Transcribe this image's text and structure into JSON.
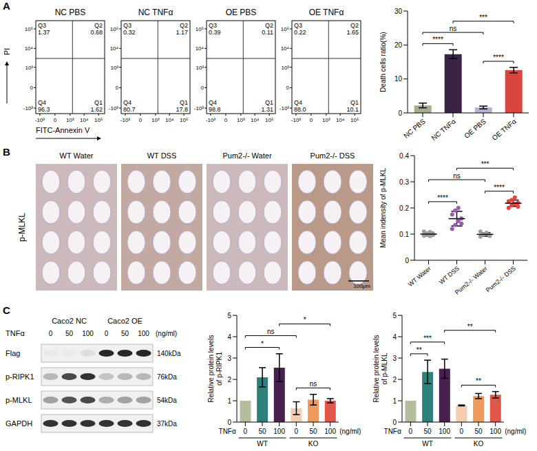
{
  "panel_labels": [
    "A",
    "B",
    "C"
  ],
  "flow_cytometry": {
    "x_label": "FITC-Annexin V",
    "y_label": "PI",
    "xlim": [
      -2000,
      262144
    ],
    "ylim": [
      -2000,
      262144
    ],
    "xticks": [
      {
        "value": -1000,
        "label": "-10³"
      },
      0,
      {
        "value": 1000,
        "label": "10³"
      },
      {
        "value": 10000,
        "label": "10⁴"
      },
      {
        "value": 100000,
        "label": "10⁵"
      }
    ],
    "yticks": [
      {
        "value": -1000,
        "label": "-10³"
      },
      0,
      {
        "value": 1000,
        "label": "10³"
      },
      {
        "value": 10000,
        "label": "10⁴"
      },
      {
        "value": 100000,
        "label": "10⁵"
      }
    ],
    "gate": {
      "x": 1500,
      "y": 3000
    },
    "panels": [
      {
        "title": "NC PBS",
        "quadrants": [
          {
            "name": "Q3",
            "value": 1.37
          },
          {
            "name": "Q2",
            "value": 0.68
          },
          {
            "name": "Q4",
            "value": 96.3
          },
          {
            "name": "Q1",
            "value": 1.62
          }
        ]
      },
      {
        "title": "NC TNFα",
        "quadrants": [
          {
            "name": "Q3",
            "value": 0.32
          },
          {
            "name": "Q2",
            "value": 1.17
          },
          {
            "name": "Q4",
            "value": 80.7
          },
          {
            "name": "Q1",
            "value": 17.8
          }
        ]
      },
      {
        "title": "OE PBS",
        "quadrants": [
          {
            "name": "Q3",
            "value": 0.39
          },
          {
            "name": "Q2",
            "value": 0.11
          },
          {
            "name": "Q4",
            "value": 98.8
          },
          {
            "name": "Q1",
            "value": 1.31
          }
        ]
      },
      {
        "title": "OE TNFα",
        "quadrants": [
          {
            "name": "Q3",
            "value": 0.22
          },
          {
            "name": "Q2",
            "value": 1.65
          },
          {
            "name": "Q4",
            "value": 88.0,
            "label": "88.0"
          },
          {
            "name": "Q1",
            "value": 10.1
          }
        ]
      }
    ]
  },
  "ihc": {
    "y_label": "p-MLKL",
    "scale_bar": "100μm",
    "panels": [
      "WT Water",
      "WT DSS",
      "Pum2-/- Water",
      "Pum2-/- DSS"
    ]
  },
  "western_blot": {
    "groups": [
      {
        "name": "Caco2 NC",
        "lanes": 3
      },
      {
        "name": "Caco2 OE",
        "lanes": 3
      }
    ],
    "dose_label": "TNFα",
    "doses": [
      0,
      50,
      100,
      0,
      50,
      100
    ],
    "dose_unit": "(ng/ml)",
    "rows": [
      {
        "name": "Flag",
        "size": "140kDa",
        "intensity": [
          0.03,
          0.03,
          0.08,
          0.9,
          0.9,
          0.9
        ]
      },
      {
        "name": "p-RIPK1",
        "size": "76kDa",
        "intensity": [
          0.25,
          0.75,
          0.85,
          0.2,
          0.25,
          0.25
        ]
      },
      {
        "name": "p-MLKL",
        "size": "54kDa",
        "intensity": [
          0.35,
          0.7,
          0.75,
          0.3,
          0.35,
          0.35
        ]
      },
      {
        "name": "GAPDH",
        "size": "37kDa",
        "intensity": [
          0.85,
          0.85,
          0.85,
          0.85,
          0.85,
          0.85
        ]
      }
    ]
  },
  "chart_data": [
    {
      "type": "bar",
      "categories": [
        "NC PBS",
        "NC TNFα",
        "OE PBS",
        "OE TNFα"
      ],
      "values": [
        2.2,
        17.3,
        1.6,
        12.6
      ],
      "errors": [
        0.7,
        1.3,
        0.4,
        0.8
      ],
      "colors": [
        "#a3ad8f",
        "#3b2346",
        "#b9b1cf",
        "#d8473f"
      ],
      "y_label": "Death cells ratio(%)",
      "ylim": [
        0,
        30
      ],
      "yticks": [
        0,
        10,
        20,
        30
      ],
      "annotations": [
        {
          "from": 0,
          "to": 1,
          "label": "****"
        },
        {
          "from": 2,
          "to": 3,
          "label": "****"
        },
        {
          "from": 0,
          "to": 2,
          "label": "ns"
        },
        {
          "from": 1,
          "to": 3,
          "label": "***"
        }
      ]
    },
    {
      "type": "scatter",
      "categories": [
        "WT Water",
        "WT DSS",
        "Pum2-/- Water",
        "Pum2-/- DSS"
      ],
      "values": [
        [
          0.094,
          0.1,
          0.108,
          0.097,
          0.11,
          0.103,
          0.092,
          0.1
        ],
        [
          0.12,
          0.135,
          0.15,
          0.16,
          0.175,
          0.19,
          0.2,
          0.14
        ],
        [
          0.09,
          0.1,
          0.105,
          0.095,
          0.11,
          0.098,
          0.102,
          0.093
        ],
        [
          0.2,
          0.21,
          0.215,
          0.22,
          0.225,
          0.23,
          0.24,
          0.205
        ]
      ],
      "means": [
        0.1,
        0.159,
        0.099,
        0.218
      ],
      "errors": [
        0.007,
        0.028,
        0.007,
        0.012
      ],
      "colors": [
        "#9e9e9e",
        "#9b59b6",
        "#9e9e9e",
        "#e8413b"
      ],
      "y_label": "Mean indensity of p-MLKL",
      "ylim": [
        0,
        0.4
      ],
      "yticks": [
        0,
        0.1,
        0.2,
        0.3,
        0.4
      ],
      "annotations": [
        {
          "from": 0,
          "to": 1,
          "label": "****"
        },
        {
          "from": 2,
          "to": 3,
          "label": "****"
        },
        {
          "from": 0,
          "to": 2,
          "label": "ns"
        },
        {
          "from": 1,
          "to": 3,
          "label": "***"
        }
      ]
    },
    {
      "type": "bar",
      "categories": [
        "0",
        "50",
        "100",
        "0",
        "50",
        "100"
      ],
      "values": [
        1,
        2.1,
        2.55,
        0.65,
        1.05,
        1.0
      ],
      "errors": [
        0,
        0.45,
        0.65,
        0.3,
        0.25,
        0.1
      ],
      "colors": [
        "#b5bda0",
        "#2f7f7b",
        "#47204f",
        "#f2cdb0",
        "#ec9a5d",
        "#e0574a"
      ],
      "groups": [
        {
          "name": "WT",
          "from": 0,
          "to": 2
        },
        {
          "name": "KO",
          "from": 3,
          "to": 5
        }
      ],
      "x_label": "TNFα",
      "x_unit": "(ng/ml)",
      "y_label": "Relative protein levels of p-RIPK1",
      "ylim": [
        0,
        5
      ],
      "yticks": [
        0,
        1,
        2,
        3,
        4,
        5
      ],
      "annotations": [
        {
          "from": 0,
          "to": 2,
          "label": "*"
        },
        {
          "from": 3,
          "to": 5,
          "label": "ns"
        },
        {
          "from": 0,
          "to": 3,
          "label": "ns"
        },
        {
          "from": 2,
          "to": 5,
          "label": "*"
        }
      ]
    },
    {
      "type": "bar",
      "categories": [
        "0",
        "50",
        "100",
        "0",
        "50",
        "100"
      ],
      "values": [
        1,
        2.35,
        2.5,
        0.78,
        1.22,
        1.28
      ],
      "errors": [
        0,
        0.55,
        0.45,
        0.02,
        0.12,
        0.15
      ],
      "colors": [
        "#b5bda0",
        "#2f7f7b",
        "#47204f",
        "#f2cdb0",
        "#ec9a5d",
        "#e0574a"
      ],
      "groups": [
        {
          "name": "WT",
          "from": 0,
          "to": 2
        },
        {
          "name": "KO",
          "from": 3,
          "to": 5
        }
      ],
      "x_label": "TNFα",
      "x_unit": "(ng/ml)",
      "y_label": "Relative protein levels of p-MLKL",
      "ylim": [
        0,
        5
      ],
      "yticks": [
        0,
        1,
        2,
        3,
        4,
        5
      ],
      "annotations": [
        {
          "from": 0,
          "to": 1,
          "label": "**"
        },
        {
          "from": 3,
          "to": 5,
          "label": "**"
        },
        {
          "from": 0,
          "to": 2,
          "label": "***"
        },
        {
          "from": 2,
          "to": 5,
          "label": "**"
        }
      ]
    }
  ]
}
